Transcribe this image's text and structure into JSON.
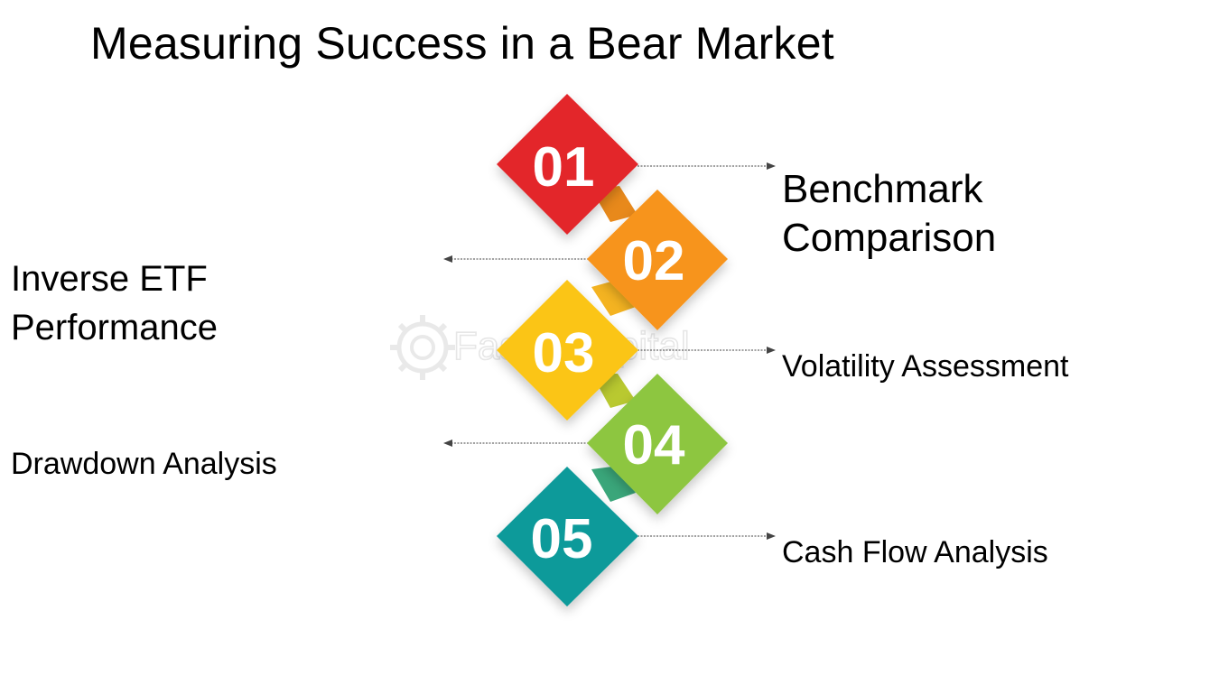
{
  "title": "Measuring Success in a Bear Market",
  "watermark": "FasterCapital",
  "steps": [
    {
      "number": "01",
      "label_lines": [
        "Benchmark",
        "Comparison"
      ],
      "side": "right",
      "color": "#e3262b",
      "shadow": "#9e1418"
    },
    {
      "number": "02",
      "label_lines": [
        "Inverse ETF",
        "Performance"
      ],
      "side": "left",
      "color": "#f7941d",
      "shadow": "#c06a0c"
    },
    {
      "number": "03",
      "label_lines": [
        "Volatility Assessment"
      ],
      "side": "right",
      "color": "#fbc512",
      "shadow": "#c4950a"
    },
    {
      "number": "04",
      "label_lines": [
        "Drawdown Analysis"
      ],
      "side": "left",
      "color": "#8dc63f",
      "shadow": "#5f9020"
    },
    {
      "number": "05",
      "label_lines": [
        "Cash Flow Analysis"
      ],
      "side": "right",
      "color": "#0d9a9a",
      "shadow": "#076a6a"
    }
  ]
}
